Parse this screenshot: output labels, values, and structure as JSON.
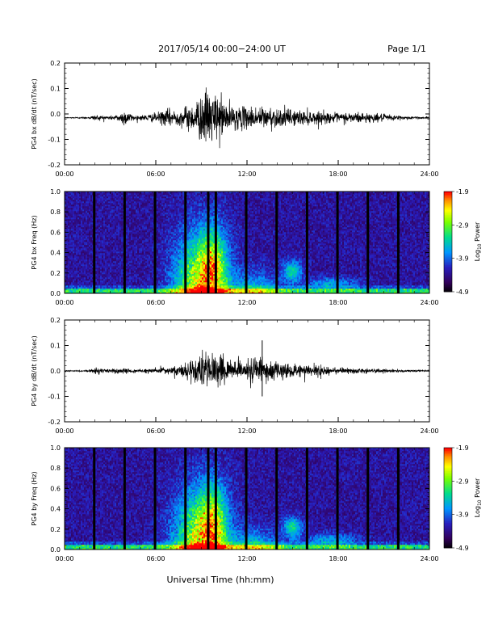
{
  "header": {
    "title": "2017/05/14  00:00−24:00 UT",
    "page": "Page 1/1"
  },
  "footer": {
    "xlabel": "Universal Time (hh:mm)"
  },
  "chart_data": [
    {
      "type": "line",
      "ylabel": "PG4 bx dB/dt (nT/sec)",
      "x_unit": "hours UT",
      "xlim": [
        0,
        24
      ],
      "ylim": [
        -0.2,
        0.2
      ],
      "yticks": [
        "0.2",
        "0.1",
        "0.0",
        "-0.1",
        "-0.2"
      ],
      "xticks": [
        "00:00",
        "06:00",
        "12:00",
        "18:00",
        "24:00"
      ],
      "baseline": -0.015,
      "amplitude_envelope": {
        "x": [
          0,
          1.5,
          2,
          3,
          3.5,
          4,
          4.5,
          5,
          6,
          6.5,
          7,
          7.5,
          8,
          8.5,
          9,
          9.5,
          10,
          10.5,
          11,
          12,
          13,
          14,
          15,
          16,
          17,
          18,
          19,
          20,
          21,
          22,
          23,
          24
        ],
        "y": [
          0.002,
          0.004,
          0.012,
          0.008,
          0.015,
          0.035,
          0.012,
          0.01,
          0.02,
          0.03,
          0.04,
          0.03,
          0.05,
          0.06,
          0.1,
          0.12,
          0.1,
          0.08,
          0.05,
          0.045,
          0.05,
          0.04,
          0.035,
          0.03,
          0.025,
          0.02,
          0.025,
          0.02,
          0.015,
          0.01,
          0.006,
          0.003
        ]
      }
    },
    {
      "type": "heatmap",
      "ylabel": "PG4 bx Freq (Hz)",
      "xlim": [
        0,
        24
      ],
      "ylim": [
        0,
        1.0
      ],
      "yticks": [
        "1.0",
        "0.8",
        "0.6",
        "0.4",
        "0.2",
        "0.0"
      ],
      "xticks": [
        "00:00",
        "06:00",
        "12:00",
        "18:00",
        "24:00"
      ],
      "colorbar": {
        "ticks": [
          "-1.9",
          "-2.9",
          "-3.9",
          "-4.9"
        ],
        "label": "Log10 Power",
        "range": [
          -4.9,
          -1.9
        ]
      },
      "gaps_hours": [
        1.95,
        3.95,
        5.95,
        7.95,
        9.45,
        9.95,
        11.95,
        13.95,
        15.95,
        17.95,
        19.95,
        21.95
      ]
    },
    {
      "type": "line",
      "ylabel": "PG4 by dB/dt (nT/sec)",
      "x_unit": "hours UT",
      "xlim": [
        0,
        24
      ],
      "ylim": [
        -0.2,
        0.2
      ],
      "yticks": [
        "0.2",
        "0.1",
        "0.0",
        "-0.1",
        "-0.2"
      ],
      "xticks": [
        "00:00",
        "06:00",
        "12:00",
        "18:00",
        "24:00"
      ],
      "baseline": 0.0,
      "amplitude_envelope": {
        "x": [
          0,
          1.5,
          2,
          3,
          3.5,
          4,
          5,
          6,
          6.5,
          7,
          7.5,
          8,
          8.5,
          9,
          9.5,
          10,
          10.5,
          11,
          12,
          12.5,
          13,
          13.5,
          14,
          15,
          16,
          17,
          18,
          19,
          20,
          21,
          22,
          23,
          24
        ],
        "y": [
          0.002,
          0.003,
          0.012,
          0.008,
          0.012,
          0.01,
          0.008,
          0.012,
          0.015,
          0.02,
          0.02,
          0.035,
          0.05,
          0.08,
          0.09,
          0.075,
          0.06,
          0.04,
          0.045,
          0.06,
          0.05,
          0.04,
          0.04,
          0.035,
          0.025,
          0.02,
          0.015,
          0.012,
          0.01,
          0.008,
          0.006,
          0.004,
          0.003
        ]
      },
      "spikes": [
        {
          "x": 13.0,
          "y": 0.12
        },
        {
          "x": 13.0,
          "y": -0.1
        }
      ]
    },
    {
      "type": "heatmap",
      "ylabel": "PG4 by Freq (Hz)",
      "xlim": [
        0,
        24
      ],
      "ylim": [
        0,
        1.0
      ],
      "yticks": [
        "1.0",
        "0.8",
        "0.6",
        "0.4",
        "0.2",
        "0.0"
      ],
      "xticks": [
        "00:00",
        "06:00",
        "12:00",
        "18:00",
        "24:00"
      ],
      "colorbar": {
        "ticks": [
          "-1.9",
          "-2.9",
          "-3.9",
          "-4.9"
        ],
        "label": "Log10 Power",
        "range": [
          -4.9,
          -1.9
        ]
      },
      "gaps_hours": [
        1.95,
        3.95,
        5.95,
        7.95,
        9.45,
        9.95,
        11.95,
        13.95,
        15.95,
        17.95,
        19.95,
        21.95
      ]
    }
  ]
}
